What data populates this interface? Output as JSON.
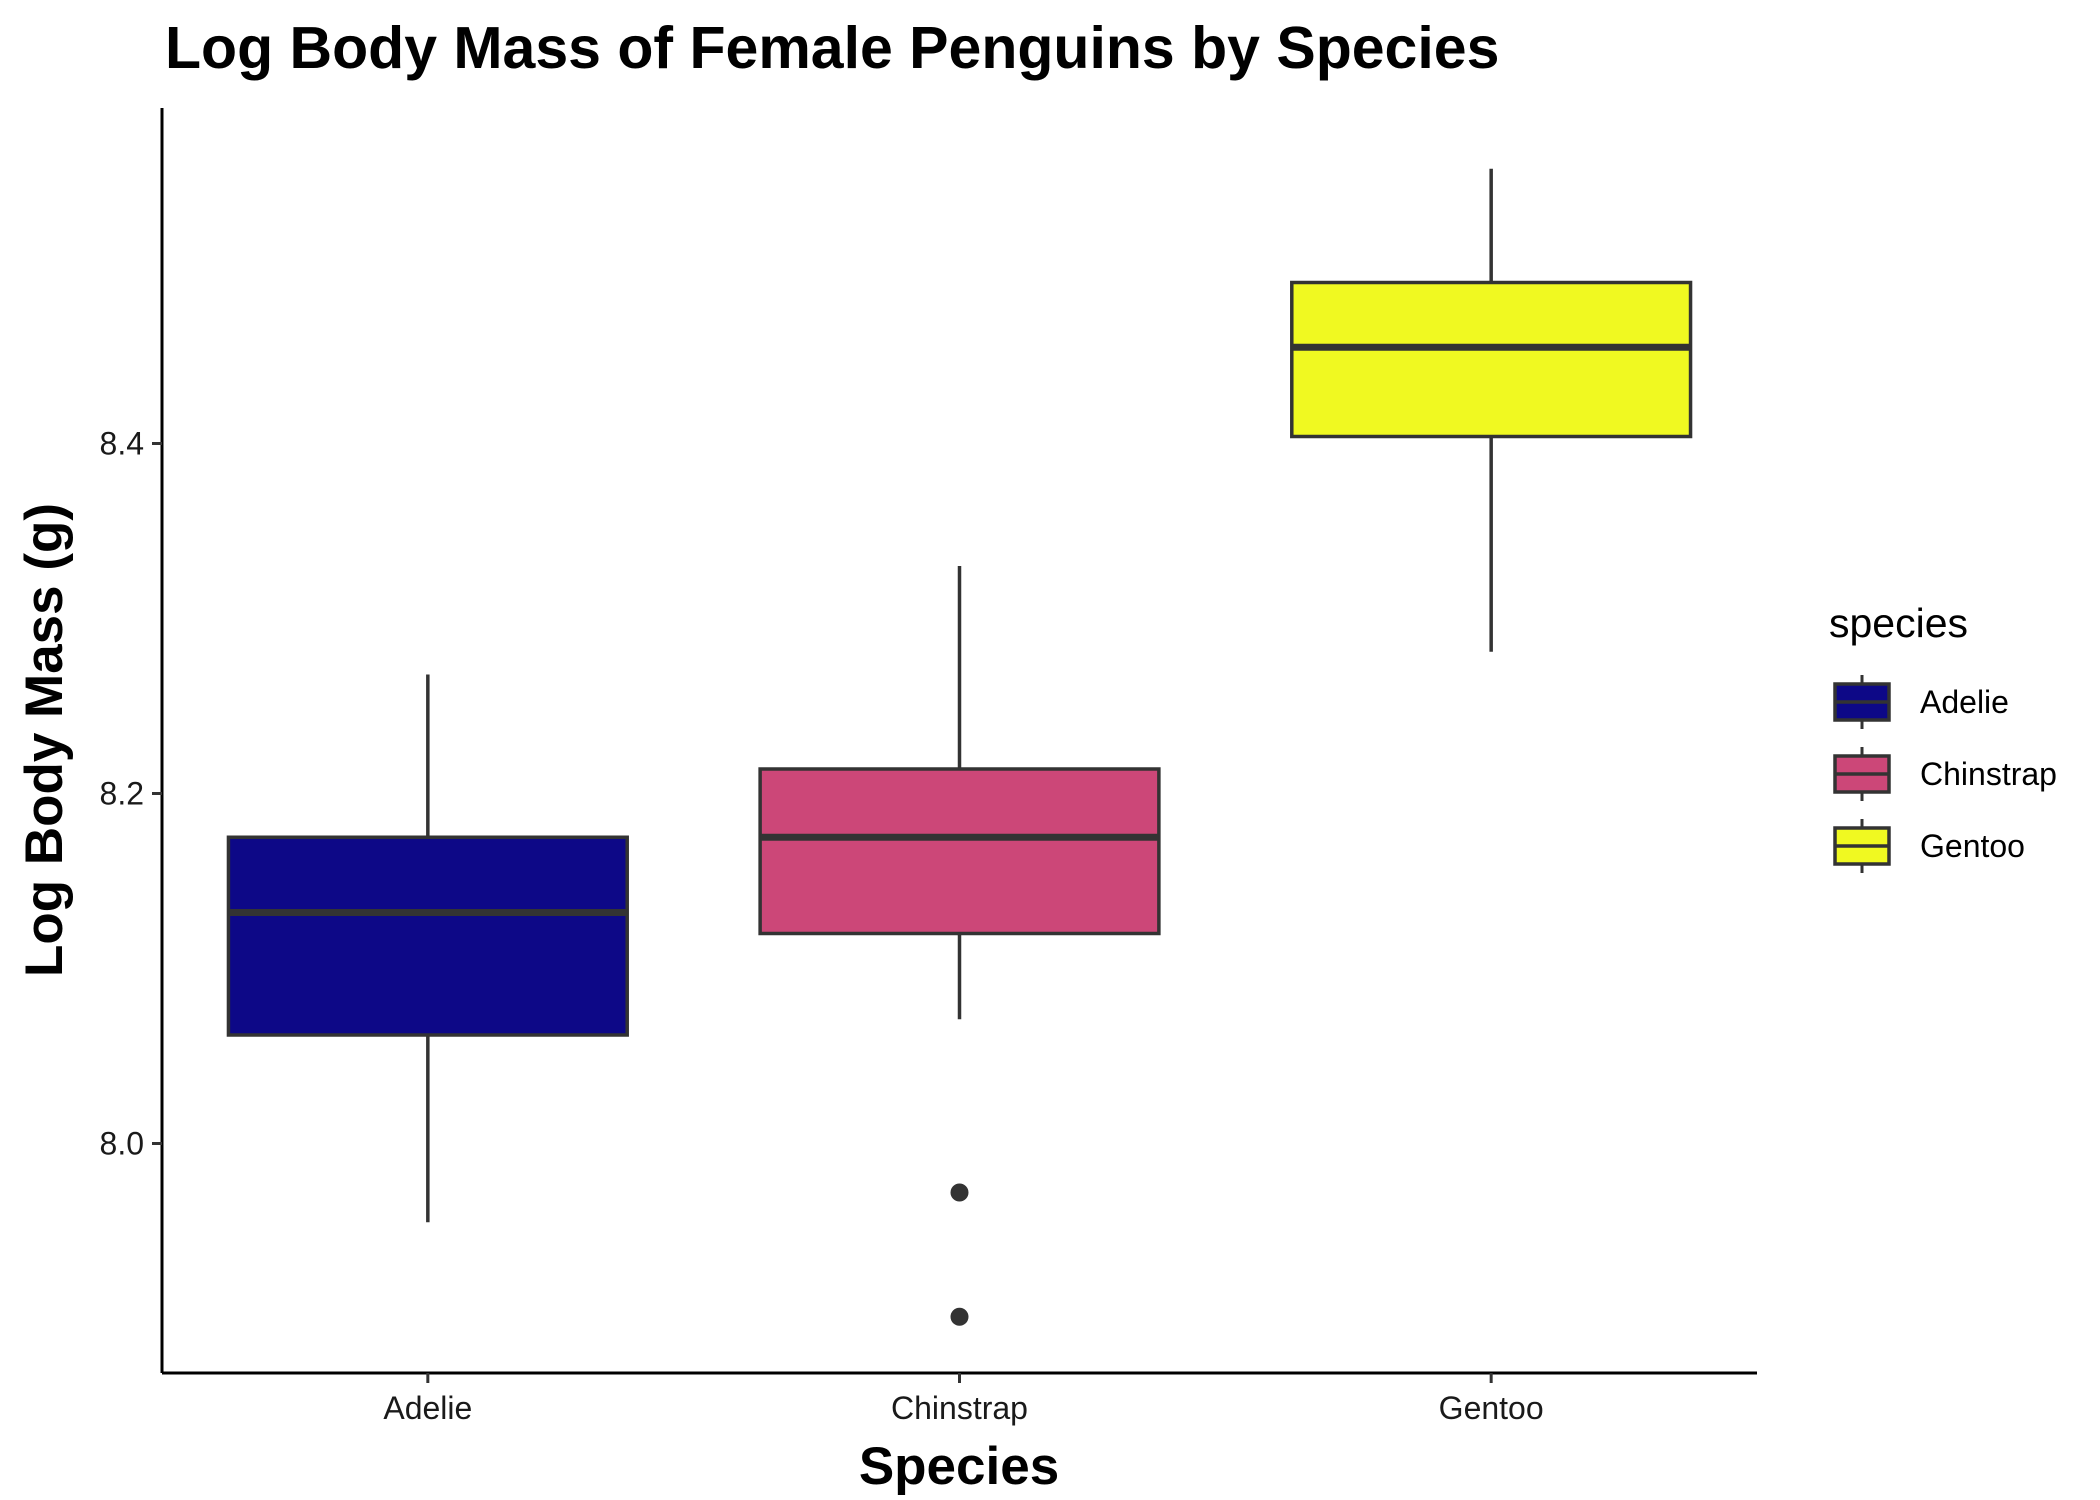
{
  "chart_data": {
    "type": "boxplot",
    "title": "Log Body Mass of Female Penguins by Species",
    "xlabel": "Species",
    "ylabel": "Log Body Mass (g)",
    "ylim": [
      7.87,
      8.59
    ],
    "yticks": [
      8.0,
      8.2,
      8.4
    ],
    "ytick_labels": [
      "8.0",
      "8.2",
      "8.4"
    ],
    "grid": false,
    "legend": {
      "title": "species",
      "position": "right",
      "entries": [
        "Adelie",
        "Chinstrap",
        "Gentoo"
      ]
    },
    "categories": [
      "Adelie",
      "Chinstrap",
      "Gentoo"
    ],
    "boxes": [
      {
        "name": "Adelie",
        "color": "#0D0887",
        "lower_whisker": 7.955,
        "q1": 8.062,
        "median": 8.132,
        "q3": 8.175,
        "upper_whisker": 8.268,
        "outliers": []
      },
      {
        "name": "Chinstrap",
        "color": "#CC4778",
        "lower_whisker": 8.071,
        "q1": 8.12,
        "median": 8.175,
        "q3": 8.214,
        "upper_whisker": 8.33,
        "outliers": [
          7.972,
          7.901
        ]
      },
      {
        "name": "Gentoo",
        "color": "#F0F921",
        "lower_whisker": 8.281,
        "q1": 8.404,
        "median": 8.455,
        "q3": 8.492,
        "upper_whisker": 8.557,
        "outliers": []
      }
    ]
  }
}
